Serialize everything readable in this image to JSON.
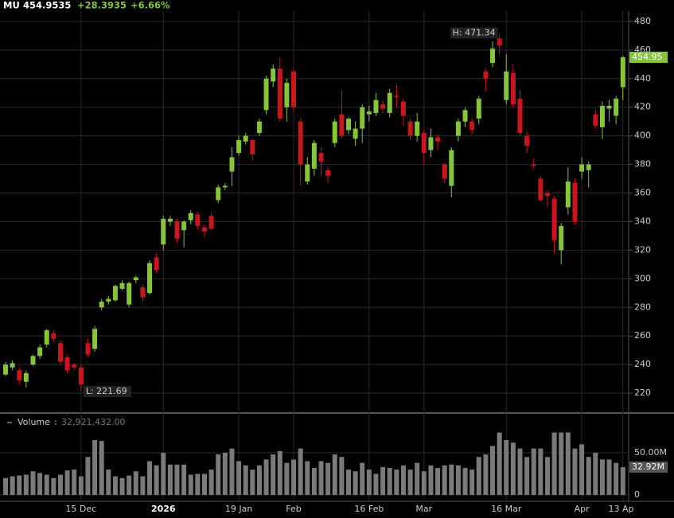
{
  "header": {
    "symbol": "MU",
    "price": "454.9535",
    "change": "+28.3935",
    "change_pct": "+6.66%"
  },
  "chart_data": [
    {
      "type": "candlestick",
      "categories": [
        null,
        null,
        null,
        null,
        null,
        null,
        null,
        null,
        null,
        null,
        null,
        "15 Dec",
        null,
        null,
        null,
        null,
        null,
        null,
        null,
        null,
        null,
        null,
        null,
        "2026",
        null,
        null,
        null,
        null,
        null,
        null,
        null,
        null,
        null,
        null,
        "19 Jan",
        null,
        null,
        null,
        null,
        null,
        null,
        null,
        "Feb",
        null,
        null,
        null,
        null,
        null,
        null,
        null,
        null,
        null,
        null,
        "16 Feb",
        null,
        null,
        null,
        null,
        null,
        null,
        null,
        "Mar",
        null,
        null,
        null,
        null,
        null,
        null,
        null,
        null,
        null,
        null,
        null,
        "16 Mar",
        null,
        null,
        null,
        null,
        null,
        null,
        null,
        null,
        null,
        null,
        "Apr",
        null,
        null,
        null,
        null,
        null,
        "13 Apr"
      ],
      "open": [
        233,
        238,
        236,
        228,
        240,
        246,
        254,
        262,
        255,
        245,
        240,
        238,
        255,
        251,
        280,
        284,
        285,
        293,
        282,
        299,
        294,
        290,
        315,
        324,
        340,
        340,
        334,
        341,
        345,
        336,
        344,
        355,
        364,
        375,
        388,
        396,
        397,
        402,
        418,
        438,
        447,
        420,
        445,
        410,
        368,
        377,
        388,
        376,
        395,
        415,
        404,
        398,
        405,
        415,
        416,
        422,
        416,
        428,
        424,
        410,
        400,
        402,
        390,
        399,
        380,
        365,
        400,
        410,
        410,
        412,
        445,
        451,
        468,
        425,
        444,
        426,
        400,
        380,
        370,
        360,
        356,
        320,
        350,
        367,
        375,
        376,
        415,
        406,
        419,
        414,
        434
      ],
      "high": [
        242,
        243,
        238,
        236,
        247,
        254,
        265,
        264,
        257,
        247,
        241,
        240,
        258,
        267,
        286,
        288,
        296,
        299,
        298,
        302,
        296,
        313,
        318,
        344,
        344,
        342,
        341,
        348,
        347,
        338,
        346,
        366,
        367,
        392,
        400,
        402,
        398,
        412,
        442,
        450,
        455,
        440,
        447,
        412,
        385,
        397,
        392,
        378,
        412,
        432,
        413,
        410,
        422,
        421,
        430,
        425,
        433,
        436,
        426,
        412,
        416,
        404,
        405,
        401,
        381,
        392,
        412,
        420,
        412,
        428,
        447,
        466,
        471.34,
        457,
        450,
        432,
        403,
        384,
        372,
        362,
        358,
        339,
        378,
        370,
        385,
        382,
        418,
        424,
        425,
        428,
        456
      ],
      "low": [
        232,
        236,
        226,
        224,
        239,
        244,
        252,
        256,
        240,
        234,
        236,
        221.69,
        245,
        249,
        278,
        282,
        284,
        292,
        280,
        297,
        284,
        289,
        304,
        320,
        337,
        325,
        322,
        338,
        334,
        329,
        334,
        353,
        362,
        365,
        386,
        394,
        383,
        400,
        415,
        434,
        410,
        410,
        416,
        365,
        366,
        372,
        372,
        367,
        392,
        398,
        401,
        393,
        395,
        410,
        414,
        416,
        413,
        420,
        407,
        397,
        396,
        380,
        385,
        390,
        367,
        357,
        396,
        406,
        401,
        408,
        431,
        448,
        457,
        422,
        420,
        400,
        388,
        377,
        354,
        350,
        318,
        310,
        345,
        338,
        370,
        364,
        405,
        398,
        410,
        408,
        425
      ],
      "close": [
        240,
        241,
        229,
        234,
        246,
        252,
        264,
        258,
        242,
        236,
        238,
        226,
        247,
        265,
        284,
        286,
        295,
        297,
        297,
        301,
        287,
        311,
        306,
        342,
        342,
        328,
        340,
        346,
        337,
        333,
        335,
        364,
        365,
        385,
        397,
        400,
        387,
        410,
        440,
        447,
        412,
        437,
        420,
        380,
        380,
        395,
        382,
        372,
        410,
        400,
        412,
        405,
        420,
        417,
        425,
        419,
        430,
        427,
        414,
        400,
        410,
        388,
        399,
        396,
        370,
        390,
        410,
        418,
        404,
        426,
        440,
        461,
        463,
        445,
        422,
        402,
        393,
        379,
        355,
        358,
        327,
        337,
        368,
        340,
        380,
        380,
        407,
        421,
        421,
        426,
        454.95
      ],
      "close_labels": [
        null,
        null,
        null,
        null,
        null,
        null,
        null,
        null,
        null,
        null,
        null,
        null,
        null,
        null,
        null,
        null,
        null,
        null,
        null,
        null,
        null,
        null,
        null,
        null,
        null,
        null,
        null,
        null,
        null,
        null,
        null,
        null,
        null,
        null,
        null,
        null,
        null,
        null,
        null,
        null,
        null,
        null,
        null,
        null,
        null,
        null,
        null,
        null,
        null,
        null,
        null,
        null,
        null,
        null,
        null,
        null,
        null,
        null,
        null,
        null,
        null,
        null,
        null,
        null,
        null,
        null,
        null,
        null,
        null,
        null,
        null,
        null,
        null,
        null,
        null,
        null,
        null,
        null,
        null,
        null,
        null,
        null,
        null,
        null,
        null,
        null,
        null,
        null,
        null,
        null,
        "454.95"
      ],
      "high_label": "H: 471.34",
      "low_label": "L: 221.69",
      "up_color": "#86c43a",
      "down_color": "#c8161c",
      "ylim": [
        206.7,
        487.2
      ],
      "yticks": [
        220,
        240,
        260,
        280,
        300,
        320,
        340,
        360,
        380,
        400,
        420,
        440,
        460,
        480
      ],
      "grid": true
    },
    {
      "type": "bar",
      "title": "Volume",
      "value_text": "32,921,432.00",
      "color": "#7a7a7a",
      "values": [
        20000000,
        22000000,
        23000000,
        24000000,
        28000000,
        26000000,
        24000000,
        20000000,
        24000000,
        29000000,
        30000000,
        22000000,
        45000000,
        65000000,
        64000000,
        30000000,
        22000000,
        20000000,
        23000000,
        28000000,
        22000000,
        40000000,
        35000000,
        50000000,
        36000000,
        36000000,
        36000000,
        24000000,
        25000000,
        25000000,
        30000000,
        48000000,
        50000000,
        55000000,
        40000000,
        35000000,
        30000000,
        35000000,
        42000000,
        48000000,
        52000000,
        38000000,
        42000000,
        55000000,
        40000000,
        32000000,
        40000000,
        38000000,
        48000000,
        45000000,
        30000000,
        28000000,
        38000000,
        30000000,
        25000000,
        33000000,
        32000000,
        30000000,
        35000000,
        30000000,
        38000000,
        28000000,
        35000000,
        32000000,
        35000000,
        36000000,
        35000000,
        32000000,
        30000000,
        45000000,
        48000000,
        58000000,
        74000000,
        65000000,
        62000000,
        55000000,
        45000000,
        55000000,
        55000000,
        45000000,
        74000000,
        74000000,
        74000000,
        55000000,
        60000000,
        45000000,
        50000000,
        42000000,
        42000000,
        38000000,
        32921432
      ],
      "value_labels": [
        null,
        null,
        null,
        null,
        null,
        null,
        null,
        null,
        null,
        null,
        null,
        null,
        null,
        null,
        null,
        null,
        null,
        null,
        null,
        null,
        null,
        null,
        null,
        null,
        null,
        null,
        null,
        null,
        null,
        null,
        null,
        null,
        null,
        null,
        null,
        null,
        null,
        null,
        null,
        null,
        null,
        null,
        null,
        null,
        null,
        null,
        null,
        null,
        null,
        null,
        null,
        null,
        null,
        null,
        null,
        null,
        null,
        null,
        null,
        null,
        null,
        null,
        null,
        null,
        null,
        null,
        null,
        null,
        null,
        null,
        null,
        null,
        null,
        null,
        null,
        null,
        null,
        null,
        null,
        null,
        null,
        null,
        null,
        null,
        null,
        null,
        null,
        null,
        null,
        null,
        "32.92M"
      ],
      "ylim": [
        0,
        79200000
      ],
      "yticks": [
        0,
        {
          "value": 50000000,
          "label": "50.00M"
        }
      ]
    }
  ]
}
